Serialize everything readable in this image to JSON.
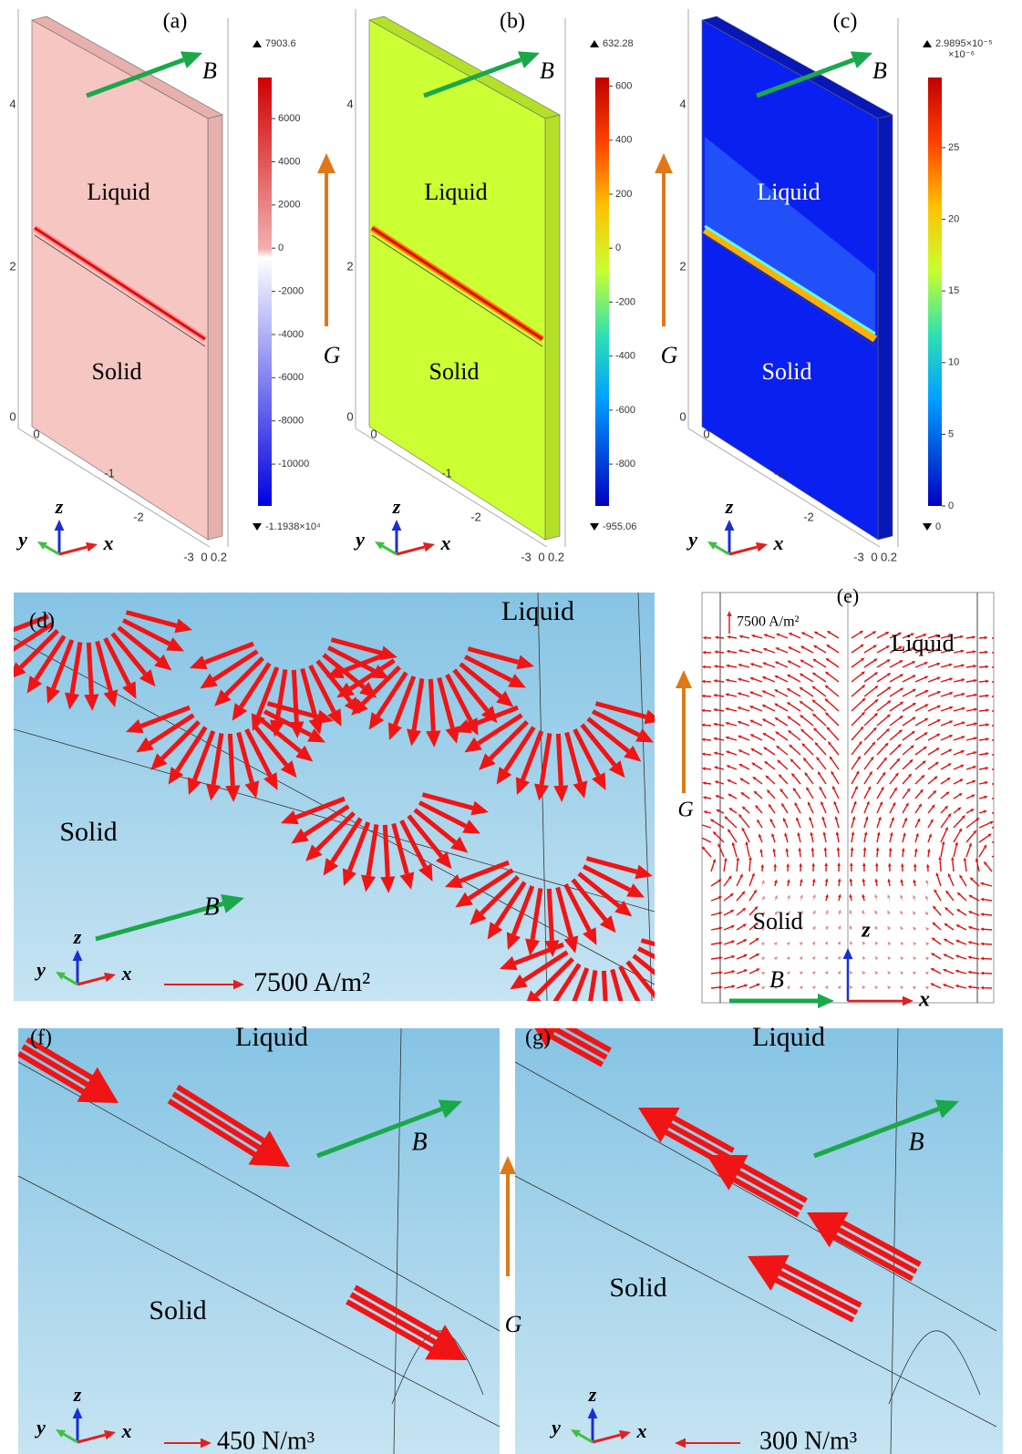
{
  "panels": [
    {
      "label": "(a)",
      "liquid": "Liquid",
      "solid": "Solid",
      "field": "B",
      "gravity": "G",
      "colorbar": {
        "max": 7903.6,
        "min": {
          "value": -11938,
          "label": "-1.1938×10⁴"
        },
        "ticks": [
          6000,
          4000,
          2000,
          0,
          -2000,
          -4000,
          -6000,
          -8000,
          -10000
        ]
      },
      "axis_ticks": [
        "4",
        "2",
        "0",
        "0",
        "-1",
        "-2",
        "-3",
        "0",
        "0.2"
      ],
      "triad": [
        "z",
        "y",
        "x"
      ]
    },
    {
      "label": "(b)",
      "liquid": "Liquid",
      "solid": "Solid",
      "field": "B",
      "gravity": "G",
      "colorbar": {
        "max": 632.28,
        "min": -955.06,
        "ticks": [
          600,
          400,
          200,
          0,
          -200,
          -400,
          -600,
          -800
        ]
      },
      "axis_ticks": [
        "4",
        "2",
        "0",
        "0",
        "-1",
        "-2",
        "-3",
        "0",
        "0.2"
      ],
      "triad": [
        "z",
        "y",
        "x"
      ]
    },
    {
      "label": "(c)",
      "liquid": "Liquid",
      "solid": "Solid",
      "field": "B",
      "colorbar": {
        "max": {
          "value": 29.895,
          "label": "2.9895×10⁻⁵"
        },
        "multiplier": "×10⁻⁶",
        "min": 0,
        "ticks": [
          25,
          20,
          15,
          10,
          5,
          0
        ]
      },
      "axis_ticks": [
        "4",
        "2",
        "0",
        "0",
        "-1",
        "-2",
        "-3",
        "0",
        "0.2"
      ],
      "triad": [
        "z",
        "y",
        "x"
      ]
    },
    {
      "label": "(d)",
      "liquid": "Liquid",
      "solid": "Solid",
      "field": "B",
      "scale": "7500 A/m²",
      "triad": [
        "z",
        "y",
        "x"
      ]
    },
    {
      "label": "(e)",
      "liquid": "Liquid",
      "solid": "Solid",
      "field": "B",
      "gravity": "G",
      "scale": "7500 A/m²",
      "axes": [
        "z",
        "x"
      ]
    },
    {
      "label": "(f)",
      "liquid": "Liquid",
      "solid": "Solid",
      "field": "B",
      "gravity": "G",
      "scale": "450 N/m³",
      "triad": [
        "z",
        "y",
        "x"
      ]
    },
    {
      "label": "(g)",
      "liquid": "Liquid",
      "solid": "Solid",
      "field": "B",
      "scale": "300 N/m³",
      "triad": [
        "z",
        "y",
        "x"
      ]
    }
  ]
}
